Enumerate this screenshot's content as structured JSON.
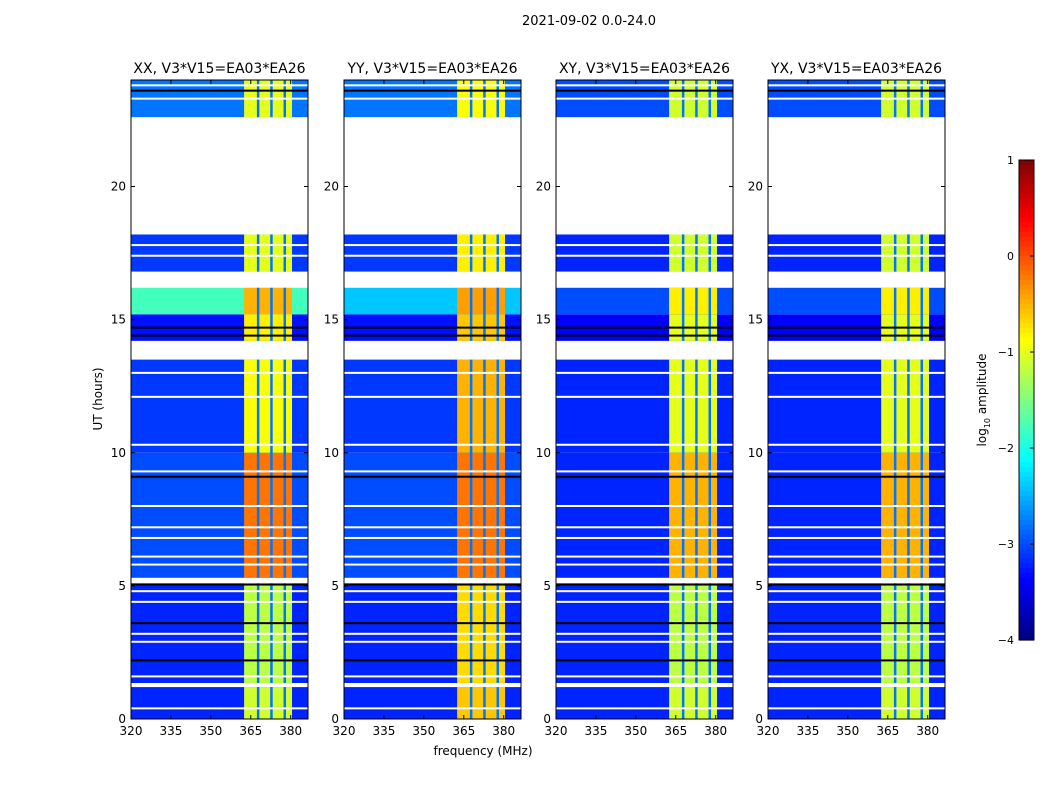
{
  "chart_data": {
    "type": "heatmap",
    "title": "2021-09-02 0.0-24.0",
    "xlabel": "frequency (MHz)",
    "ylabel": "UT (hours)",
    "xlim": [
      320,
      386.5
    ],
    "ylim": [
      0,
      24
    ],
    "xticks": [
      "320",
      "335",
      "350",
      "365",
      "380"
    ],
    "xtick_values": [
      320,
      335,
      350,
      365,
      380
    ],
    "yticks": [
      "0",
      "5",
      "10",
      "15",
      "20"
    ],
    "ytick_values": [
      0,
      5,
      10,
      15,
      20
    ],
    "colorbar": {
      "label": "log10 amplitude",
      "label_main": "log",
      "label_sub": "10",
      "label_tail": " amplitude",
      "range": [
        -4,
        1
      ],
      "ticks": [
        "1",
        "0",
        "−1",
        "−2",
        "−3",
        "−4"
      ],
      "tick_values": [
        1,
        0,
        -1,
        -2,
        -3,
        -4
      ],
      "colormap": "jet"
    },
    "rfi_band_mhz": [
      362.5,
      380.5
    ],
    "band_gaps_mhz": [
      367.3,
      372.3,
      377.3
    ],
    "segments_hours": [
      [
        0,
        1.2
      ],
      [
        1.35,
        5.1
      ],
      [
        5.3,
        10
      ],
      [
        10,
        13.5
      ],
      [
        14.2,
        15.2
      ],
      [
        15.2,
        16.2
      ],
      [
        16.8,
        18.2
      ],
      [
        22.6,
        24
      ]
    ],
    "flagged_hours": [
      [
        1.2,
        1.35
      ],
      [
        5.1,
        5.3
      ],
      [
        13.5,
        14.2
      ],
      [
        16.2,
        16.8
      ],
      [
        18.2,
        22.6
      ]
    ],
    "white_lines_hours": [
      0.4,
      1.6,
      2.9,
      3.2,
      4.4,
      4.8,
      5.8,
      6.1,
      6.8,
      7.2,
      8.0,
      9.3,
      10.3,
      12.1,
      13.0,
      17.4,
      17.8,
      23.3,
      23.8
    ],
    "black_lines_hours": [
      2.2,
      3.6,
      5.05,
      9.1,
      14.4,
      14.7,
      23.6
    ],
    "panels": [
      {
        "title": "XX, V3*V15=EA03*EA26",
        "background": [
          -3.2,
          -3.2,
          -3.0,
          -3.1,
          -3.3,
          -1.8,
          -3.1,
          -2.8
        ],
        "band": [
          -1.1,
          -1.2,
          -0.2,
          -0.9,
          -0.8,
          -0.5,
          -1.0,
          -1.0
        ]
      },
      {
        "title": "YY, V3*V15=EA03*EA26",
        "background": [
          -3.2,
          -3.2,
          -3.0,
          -3.1,
          -3.3,
          -2.4,
          -3.1,
          -2.8
        ],
        "band": [
          -0.6,
          -0.7,
          -0.2,
          -0.5,
          -0.6,
          -0.4,
          -0.8,
          -0.9
        ]
      },
      {
        "title": "XY, V3*V15=EA03*EA26",
        "background": [
          -3.2,
          -3.2,
          -3.2,
          -3.2,
          -3.4,
          -3.0,
          -3.2,
          -3.0
        ],
        "band": [
          -1.1,
          -1.2,
          -0.5,
          -1.0,
          -1.0,
          -0.8,
          -1.1,
          -1.1
        ]
      },
      {
        "title": "YX, V3*V15=EA03*EA26",
        "background": [
          -3.2,
          -3.2,
          -3.2,
          -3.2,
          -3.4,
          -3.0,
          -3.2,
          -3.0
        ],
        "band": [
          -1.1,
          -1.2,
          -0.5,
          -1.0,
          -1.0,
          -0.8,
          -1.1,
          -1.1
        ]
      }
    ]
  }
}
